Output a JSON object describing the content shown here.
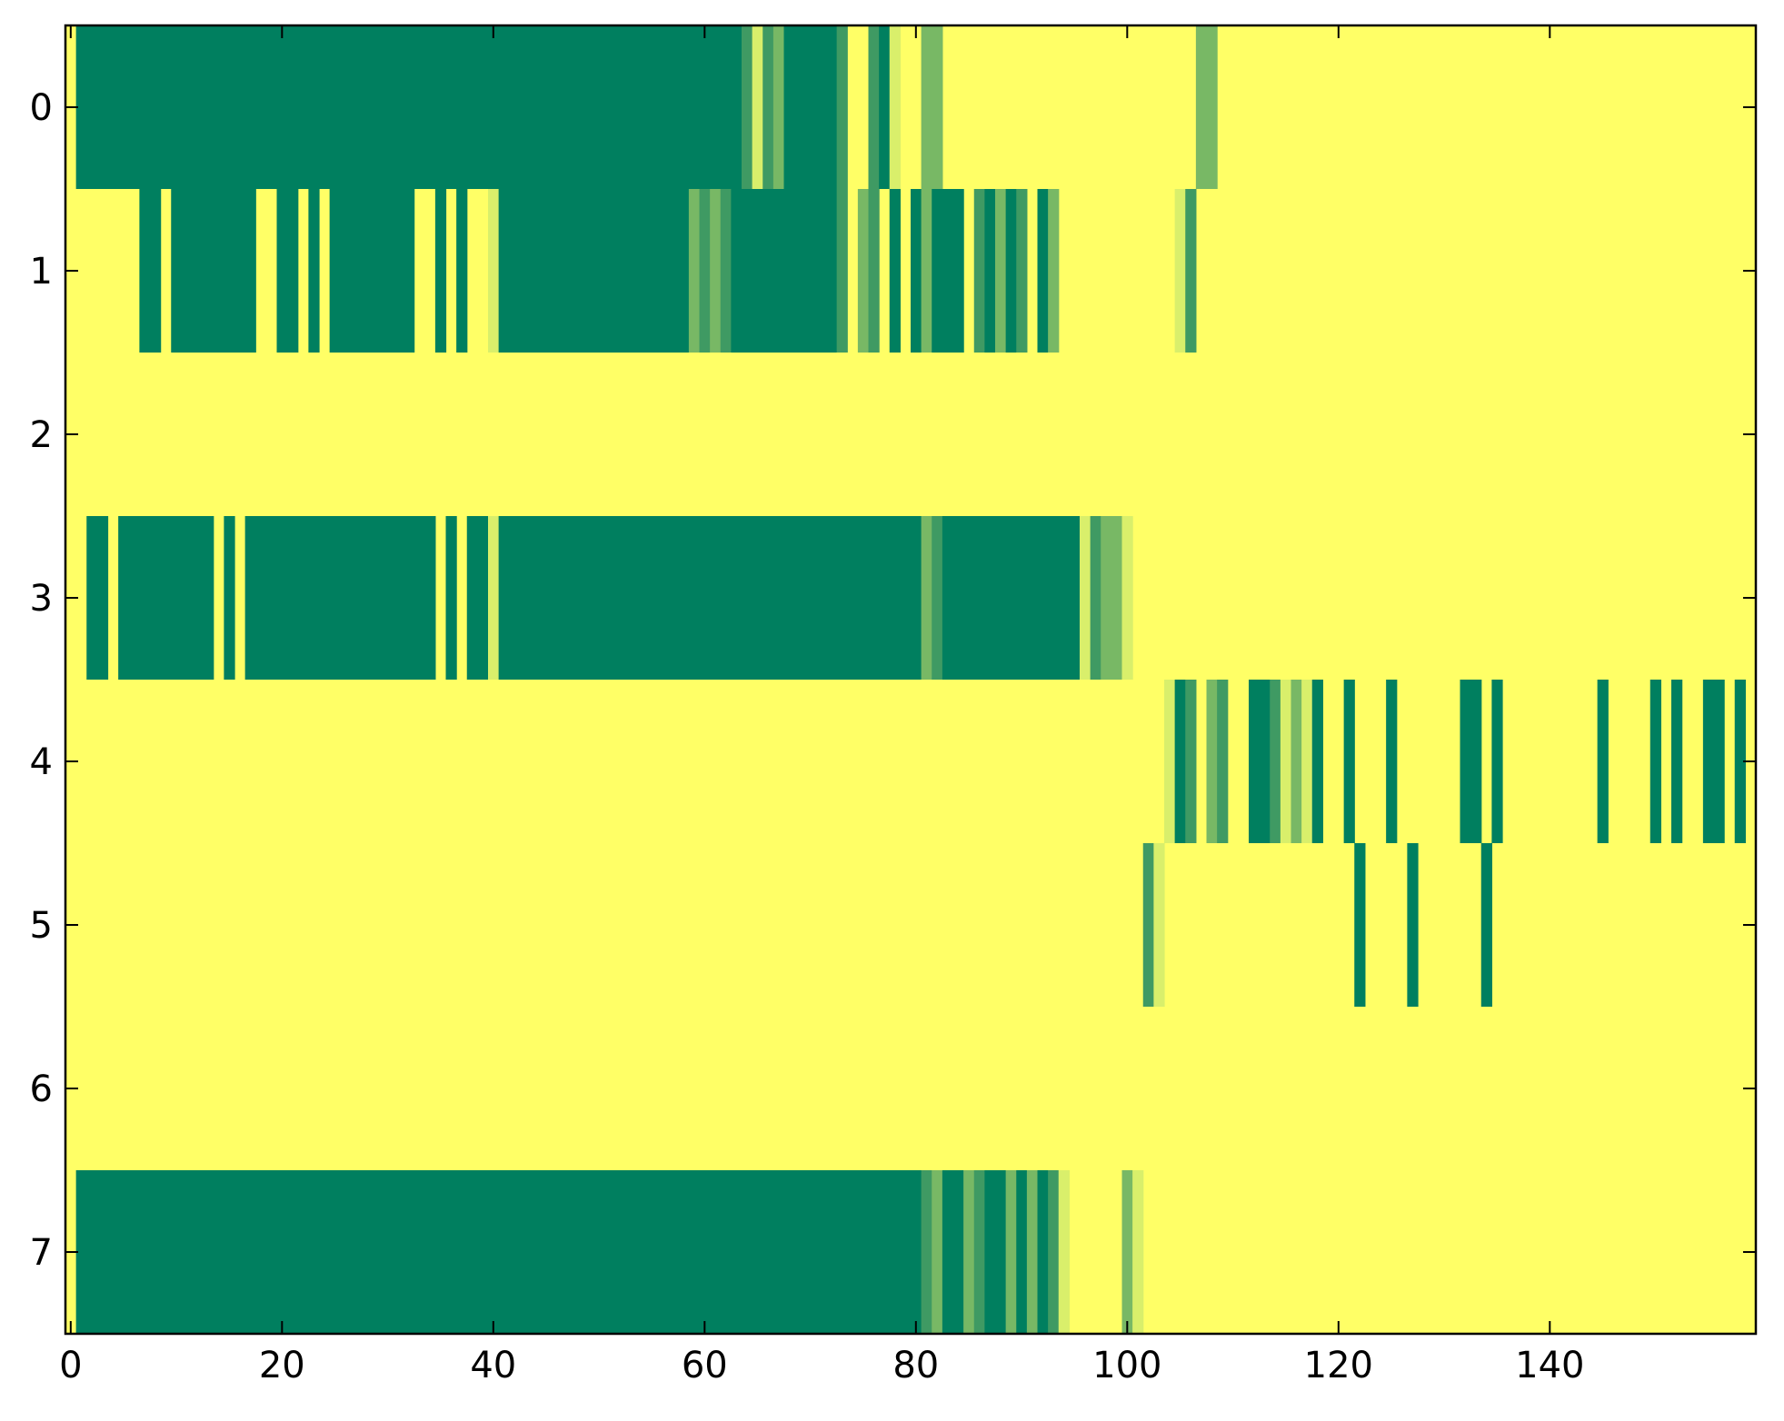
{
  "chart_data": {
    "type": "heatmap",
    "title": "",
    "xlabel": "",
    "ylabel": "",
    "xlim": [
      -0.5,
      159.5
    ],
    "ylim": [
      7.5,
      -0.5
    ],
    "grid": false,
    "colormap": [
      "#ffff66",
      "#d9ef6b",
      "#a6d46a",
      "#78b865",
      "#3f9a63",
      "#007f5f"
    ],
    "background_value": 0,
    "x_ticks": [
      {
        "value": 0,
        "label": "0"
      },
      {
        "value": 20,
        "label": "20"
      },
      {
        "value": 40,
        "label": "40"
      },
      {
        "value": 60,
        "label": "60"
      },
      {
        "value": 80,
        "label": "80"
      },
      {
        "value": 100,
        "label": "100"
      },
      {
        "value": 120,
        "label": "120"
      },
      {
        "value": 140,
        "label": "140"
      }
    ],
    "y_ticks": [
      {
        "value": 0,
        "label": "0"
      },
      {
        "value": 1,
        "label": "1"
      },
      {
        "value": 2,
        "label": "2"
      },
      {
        "value": 3,
        "label": "3"
      },
      {
        "value": 4,
        "label": "4"
      },
      {
        "value": 5,
        "label": "5"
      },
      {
        "value": 6,
        "label": "6"
      },
      {
        "value": 7,
        "label": "7"
      }
    ],
    "rows": [
      {
        "row": 0,
        "runs": [
          [
            1,
            63,
            1
          ],
          [
            64,
            64,
            0.75
          ],
          [
            65,
            65,
            0.25
          ],
          [
            66,
            66,
            0.75
          ],
          [
            67,
            67,
            0.5
          ],
          [
            68,
            72,
            1
          ],
          [
            73,
            73,
            0.75
          ],
          [
            76,
            76,
            0.75
          ],
          [
            77,
            77,
            1
          ],
          [
            78,
            78,
            0.25
          ],
          [
            81,
            82,
            0.5
          ],
          [
            107,
            108,
            0.5
          ]
        ]
      },
      {
        "row": 1,
        "runs": [
          [
            7,
            8,
            1
          ],
          [
            10,
            17,
            1
          ],
          [
            20,
            21,
            1
          ],
          [
            23,
            23,
            1
          ],
          [
            25,
            32,
            1
          ],
          [
            35,
            35,
            1
          ],
          [
            37,
            37,
            1
          ],
          [
            40,
            40,
            0.25
          ],
          [
            41,
            58,
            1
          ],
          [
            59,
            59,
            0.5
          ],
          [
            60,
            60,
            0.75
          ],
          [
            61,
            61,
            0.5
          ],
          [
            62,
            62,
            0.75
          ],
          [
            63,
            72,
            1
          ],
          [
            73,
            73,
            0.75
          ],
          [
            75,
            75,
            0.5
          ],
          [
            76,
            76,
            0.75
          ],
          [
            78,
            78,
            1
          ],
          [
            80,
            80,
            1
          ],
          [
            81,
            81,
            0.5
          ],
          [
            82,
            84,
            1
          ],
          [
            86,
            86,
            0.75
          ],
          [
            87,
            87,
            1
          ],
          [
            88,
            88,
            0.5
          ],
          [
            89,
            89,
            1
          ],
          [
            90,
            90,
            0.75
          ],
          [
            92,
            92,
            1
          ],
          [
            93,
            93,
            0.5
          ],
          [
            105,
            105,
            0.25
          ],
          [
            106,
            106,
            0.75
          ]
        ]
      },
      {
        "row": 2,
        "runs": []
      },
      {
        "row": 3,
        "runs": [
          [
            2,
            3,
            1
          ],
          [
            5,
            13,
            1
          ],
          [
            15,
            15,
            1
          ],
          [
            17,
            34,
            1
          ],
          [
            36,
            36,
            1
          ],
          [
            38,
            39,
            1
          ],
          [
            40,
            40,
            0.25
          ],
          [
            41,
            80,
            1
          ],
          [
            81,
            81,
            0.5
          ],
          [
            82,
            82,
            0.75
          ],
          [
            83,
            95,
            1
          ],
          [
            96,
            96,
            0.25
          ],
          [
            97,
            97,
            0.75
          ],
          [
            98,
            99,
            0.5
          ],
          [
            100,
            100,
            0.25
          ]
        ]
      },
      {
        "row": 4,
        "runs": [
          [
            104,
            104,
            0.25
          ],
          [
            105,
            105,
            1
          ],
          [
            106,
            106,
            0.75
          ],
          [
            108,
            108,
            0.5
          ],
          [
            109,
            109,
            0.75
          ],
          [
            112,
            113,
            1
          ],
          [
            114,
            114,
            0.75
          ],
          [
            115,
            115,
            0.25
          ],
          [
            116,
            116,
            0.5
          ],
          [
            117,
            117,
            0.25
          ],
          [
            118,
            118,
            1
          ],
          [
            121,
            121,
            1
          ],
          [
            125,
            125,
            1
          ],
          [
            132,
            133,
            1
          ],
          [
            135,
            135,
            1
          ],
          [
            145,
            145,
            1
          ],
          [
            150,
            150,
            1
          ],
          [
            152,
            152,
            1
          ],
          [
            155,
            156,
            1
          ],
          [
            158,
            158,
            1
          ]
        ]
      },
      {
        "row": 5,
        "runs": [
          [
            102,
            102,
            0.75
          ],
          [
            103,
            103,
            0.25
          ],
          [
            122,
            122,
            1
          ],
          [
            127,
            127,
            1
          ],
          [
            134,
            134,
            1
          ]
        ]
      },
      {
        "row": 6,
        "runs": []
      },
      {
        "row": 7,
        "runs": [
          [
            1,
            80,
            1
          ],
          [
            81,
            81,
            0.75
          ],
          [
            82,
            82,
            0.5
          ],
          [
            83,
            84,
            1
          ],
          [
            85,
            85,
            0.5
          ],
          [
            86,
            86,
            0.75
          ],
          [
            87,
            88,
            1
          ],
          [
            89,
            89,
            0.5
          ],
          [
            90,
            90,
            1
          ],
          [
            91,
            91,
            0.5
          ],
          [
            92,
            92,
            1
          ],
          [
            93,
            93,
            0.75
          ],
          [
            94,
            94,
            0.25
          ],
          [
            100,
            100,
            0.5
          ],
          [
            101,
            101,
            0.25
          ]
        ]
      }
    ]
  }
}
